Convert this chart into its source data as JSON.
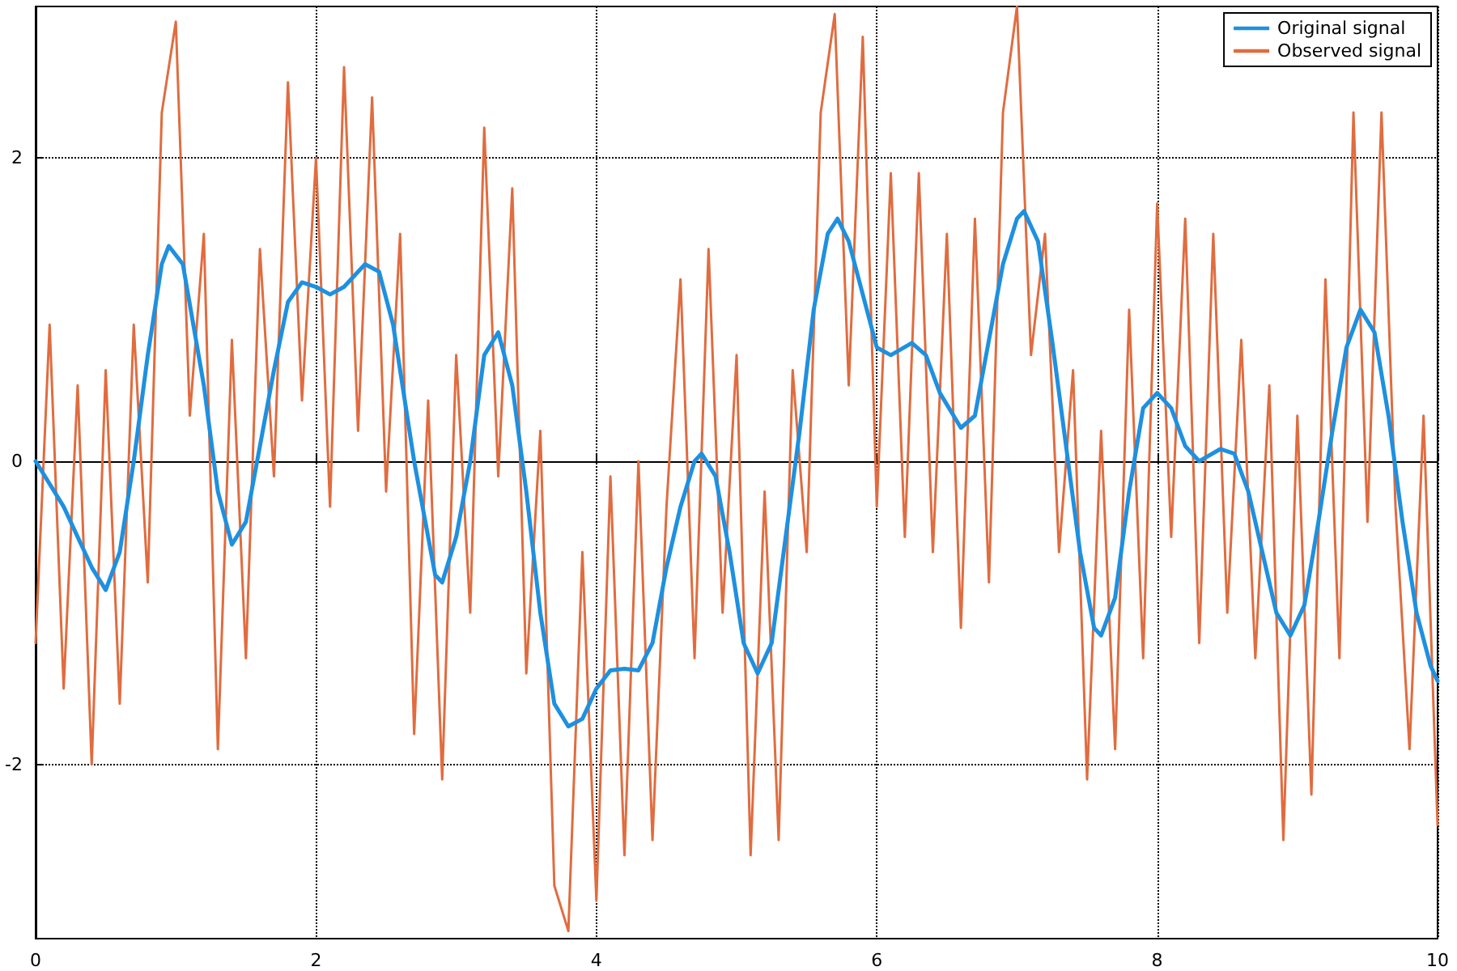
{
  "chart_data": {
    "type": "line",
    "xlim": [
      0,
      10
    ],
    "xticks": [
      0,
      2,
      4,
      6,
      8,
      10
    ],
    "ylim": [
      -3.15,
      3.0
    ],
    "yticks": [
      -2,
      0,
      2
    ],
    "grid": true,
    "legend": "top right",
    "marker": "none",
    "series": [
      {
        "name": "Original signal",
        "color": "#1e90e0",
        "x": [
          0,
          0.2,
          0.4,
          0.5,
          0.6,
          0.7,
          0.8,
          0.9,
          0.95,
          1.05,
          1.2,
          1.3,
          1.4,
          1.5,
          1.6,
          1.7,
          1.8,
          1.9,
          2.0,
          2.1,
          2.2,
          2.35,
          2.45,
          2.55,
          2.7,
          2.85,
          2.9,
          3.0,
          3.1,
          3.2,
          3.3,
          3.4,
          3.5,
          3.6,
          3.7,
          3.8,
          3.9,
          4.0,
          4.1,
          4.2,
          4.3,
          4.4,
          4.5,
          4.6,
          4.7,
          4.75,
          4.85,
          4.95,
          5.05,
          5.15,
          5.25,
          5.35,
          5.45,
          5.55,
          5.65,
          5.72,
          5.8,
          5.9,
          6.0,
          6.1,
          6.25,
          6.35,
          6.45,
          6.6,
          6.7,
          6.8,
          6.9,
          7.0,
          7.05,
          7.15,
          7.25,
          7.35,
          7.45,
          7.55,
          7.6,
          7.7,
          7.8,
          7.9,
          8.0,
          8.1,
          8.2,
          8.3,
          8.45,
          8.55,
          8.65,
          8.75,
          8.85,
          8.95,
          9.05,
          9.15,
          9.25,
          9.35,
          9.45,
          9.55,
          9.65,
          9.75,
          9.85,
          9.95,
          10
        ],
        "values": [
          0,
          -0.3,
          -0.7,
          -0.85,
          -0.6,
          0,
          0.7,
          1.3,
          1.42,
          1.3,
          0.5,
          -0.2,
          -0.55,
          -0.4,
          0.1,
          0.6,
          1.05,
          1.18,
          1.15,
          1.1,
          1.15,
          1.3,
          1.25,
          0.9,
          0,
          -0.75,
          -0.8,
          -0.5,
          0,
          0.7,
          0.85,
          0.5,
          -0.2,
          -1.0,
          -1.6,
          -1.75,
          -1.7,
          -1.5,
          -1.38,
          -1.37,
          -1.38,
          -1.2,
          -0.7,
          -0.3,
          0,
          0.05,
          -0.1,
          -0.6,
          -1.2,
          -1.4,
          -1.2,
          -0.5,
          0.2,
          1.0,
          1.5,
          1.6,
          1.45,
          1.1,
          0.75,
          0.7,
          0.78,
          0.7,
          0.45,
          0.22,
          0.3,
          0.8,
          1.3,
          1.6,
          1.65,
          1.45,
          0.8,
          0.1,
          -0.6,
          -1.1,
          -1.15,
          -0.9,
          -0.2,
          0.35,
          0.45,
          0.35,
          0.1,
          0,
          0.08,
          0.05,
          -0.2,
          -0.6,
          -1.0,
          -1.15,
          -0.95,
          -0.4,
          0.2,
          0.75,
          1.0,
          0.85,
          0.3,
          -0.4,
          -1.0,
          -1.35,
          -1.45
        ]
      },
      {
        "name": "Observed signal",
        "color": "#e06c3f",
        "x": [
          0,
          0.1,
          0.2,
          0.3,
          0.4,
          0.5,
          0.6,
          0.7,
          0.8,
          0.9,
          1.0,
          1.1,
          1.2,
          1.3,
          1.4,
          1.5,
          1.6,
          1.7,
          1.8,
          1.9,
          2.0,
          2.1,
          2.2,
          2.3,
          2.4,
          2.5,
          2.6,
          2.7,
          2.8,
          2.9,
          3.0,
          3.1,
          3.2,
          3.3,
          3.4,
          3.5,
          3.6,
          3.7,
          3.8,
          3.9,
          4.0,
          4.1,
          4.2,
          4.3,
          4.4,
          4.5,
          4.6,
          4.7,
          4.8,
          4.9,
          5.0,
          5.1,
          5.2,
          5.3,
          5.4,
          5.5,
          5.6,
          5.7,
          5.8,
          5.9,
          6.0,
          6.1,
          6.2,
          6.3,
          6.4,
          6.5,
          6.6,
          6.7,
          6.8,
          6.9,
          7.0,
          7.1,
          7.2,
          7.3,
          7.4,
          7.5,
          7.6,
          7.7,
          7.8,
          7.9,
          8.0,
          8.1,
          8.2,
          8.3,
          8.4,
          8.5,
          8.6,
          8.7,
          8.8,
          8.9,
          9.0,
          9.1,
          9.2,
          9.3,
          9.4,
          9.5,
          9.6,
          9.7,
          9.8,
          9.9,
          10.0
        ],
        "values": [
          -1.2,
          0.9,
          -1.5,
          0.5,
          -2.0,
          0.6,
          -1.6,
          0.9,
          -0.8,
          2.3,
          2.9,
          0.3,
          1.5,
          -1.9,
          0.8,
          -1.3,
          1.4,
          -0.1,
          2.5,
          0.4,
          2.0,
          -0.3,
          2.6,
          0.2,
          2.4,
          -0.2,
          1.5,
          -1.8,
          0.4,
          -2.1,
          0.7,
          -1.0,
          2.2,
          -0.1,
          1.8,
          -1.4,
          0.2,
          -2.8,
          -3.1,
          -0.6,
          -2.9,
          -0.1,
          -2.6,
          0,
          -2.5,
          -0.3,
          1.2,
          -1.3,
          1.4,
          -1.0,
          0.7,
          -2.6,
          -0.2,
          -2.5,
          0.6,
          -0.6,
          2.3,
          2.95,
          0.5,
          2.8,
          -0.3,
          1.9,
          -0.5,
          1.9,
          -0.6,
          1.5,
          -1.1,
          1.6,
          -0.8,
          2.3,
          3.0,
          0.7,
          1.5,
          -0.6,
          0.6,
          -2.1,
          0.2,
          -1.9,
          1.0,
          -1.3,
          1.7,
          -0.5,
          1.6,
          -1.2,
          1.5,
          -1.0,
          0.8,
          -1.3,
          0.5,
          -2.5,
          0.3,
          -2.2,
          1.2,
          -1.3,
          2.3,
          -0.4,
          2.3,
          -0.3,
          -1.9,
          0.3,
          -2.4
        ]
      }
    ]
  }
}
